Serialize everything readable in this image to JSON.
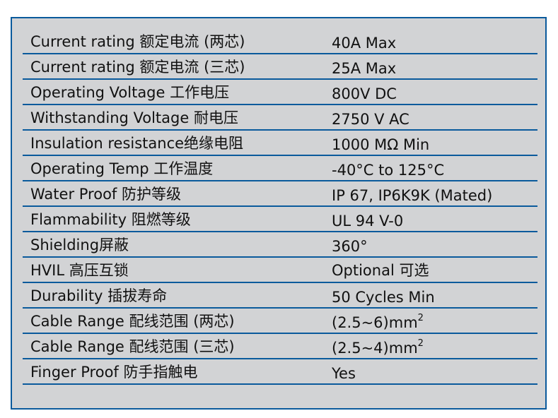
{
  "colors": {
    "border": "#0a5a9c",
    "background": "#d2d3d5"
  },
  "rows": [
    {
      "label": "Current rating 额定电流 (两芯)",
      "value": "40A Max"
    },
    {
      "label": "Current rating 额定电流 (三芯)",
      "value": "25A Max"
    },
    {
      "label": "Operating Voltage 工作电压",
      "value": "800V DC"
    },
    {
      "label": "Withstanding Voltage 耐电压",
      "value": "2750 V AC"
    },
    {
      "label": "Insulation resistance绝缘电阻",
      "value": "1000 MΩ  Min"
    },
    {
      "label": "Operating Temp 工作温度",
      "value": "-40°C to 125°C"
    },
    {
      "label": "Water Proof 防护等级",
      "value": "IP 67, IP6K9K (Mated)"
    },
    {
      "label": "Flammability 阻燃等级",
      "value": "UL 94 V-0"
    },
    {
      "label": "Shielding屏蔽",
      "value": "360°"
    },
    {
      "label": "HVIL 高压互锁",
      "value": "Optional 可选"
    },
    {
      "label": "Durability 插拔寿命",
      "value": "50 Cycles  Min"
    },
    {
      "label": "Cable Range 配线范围 (两芯)",
      "value": "(2.5~6)mm",
      "sup": "2"
    },
    {
      "label": "Cable Range 配线范围 (三芯)",
      "value": "(2.5~4)mm",
      "sup": "2"
    },
    {
      "label": "Finger Proof 防手指触电",
      "value": "Yes"
    }
  ]
}
